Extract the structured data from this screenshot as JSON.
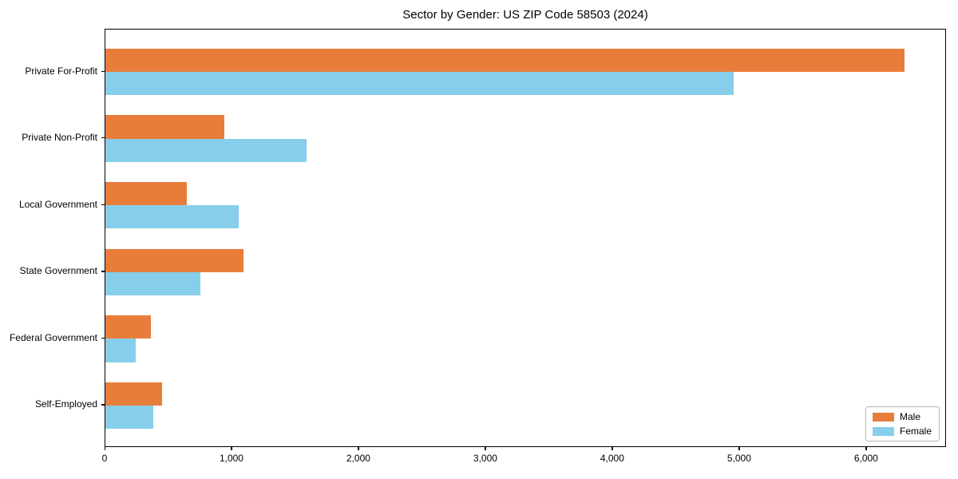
{
  "chart_data": {
    "type": "bar",
    "orientation": "horizontal",
    "title": "Sector by Gender: US ZIP Code 58503 (2024)",
    "categories": [
      "Private For-Profit",
      "Private Non-Profit",
      "Local Government",
      "State Government",
      "Federal Government",
      "Self-Employed"
    ],
    "series": [
      {
        "name": "Male",
        "color": "#E87D3B",
        "values": [
          6310,
          940,
          640,
          1090,
          360,
          450
        ]
      },
      {
        "name": "Female",
        "color": "#87CEEB",
        "values": [
          4960,
          1590,
          1050,
          750,
          240,
          380
        ]
      }
    ],
    "xlabel": "",
    "ylabel": "",
    "xlim": [
      0,
      6630
    ],
    "xticks": [
      0,
      1000,
      2000,
      3000,
      4000,
      5000,
      6000
    ],
    "xtick_labels": [
      "0",
      "1,000",
      "2,000",
      "3,000",
      "4,000",
      "5,000",
      "6,000"
    ],
    "legend_position": "lower right",
    "grid": false,
    "plot_background": "#ffffff"
  }
}
